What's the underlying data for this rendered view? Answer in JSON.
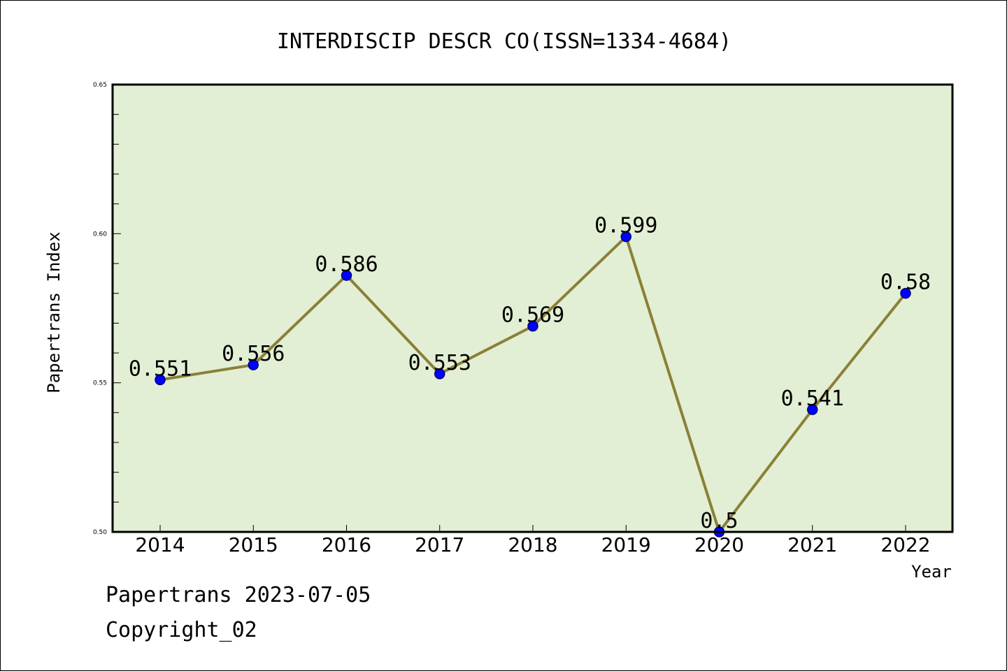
{
  "colors": {
    "plot_background": "#e2efd4",
    "line": "#8b8038",
    "marker": "#0000ff",
    "marker_edge": "#00007a",
    "frame": "#000000"
  },
  "footer": {
    "date_line": "Papertrans 2023-07-05",
    "copyright": "Copyright_02"
  },
  "chart_data": {
    "type": "line",
    "title": "INTERDISCIP DESCR CO(ISSN=1334-4684)",
    "xlabel": "Year",
    "ylabel": "Papertrans Index",
    "categories": [
      "2014",
      "2015",
      "2016",
      "2017",
      "2018",
      "2019",
      "2020",
      "2021",
      "2022"
    ],
    "series": [
      {
        "values": [
          0.551,
          0.556,
          0.586,
          0.553,
          0.569,
          0.599,
          0.5,
          0.541,
          0.58
        ],
        "labels": [
          "0.551",
          "0.556",
          "0.586",
          "0.553",
          "0.569",
          "0.599",
          "0.5",
          "0.541",
          "0.58"
        ]
      }
    ],
    "ylim": [
      0.5,
      0.65
    ],
    "yticks": [
      "0.50",
      "0.55",
      "0.60",
      "0.65"
    ],
    "ytick_values": [
      0.5,
      0.55,
      0.6,
      0.65
    ],
    "minor_tick_step": 0.01,
    "grid": false,
    "legend": "none"
  }
}
